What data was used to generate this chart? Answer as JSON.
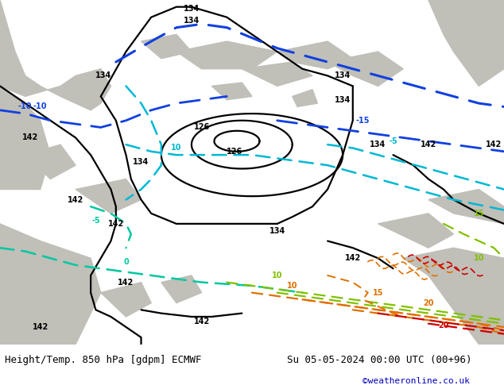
{
  "title_left": "Height/Temp. 850 hPa [gdpm] ECMWF",
  "title_right": "Su 05-05-2024 00:00 UTC (00+96)",
  "credit": "©weatheronline.co.uk",
  "map_bg": "#a8d878",
  "footer_bg": "#ffffff",
  "fig_width": 6.34,
  "fig_height": 4.9,
  "dpi": 100,
  "footer_font_size": 9
}
